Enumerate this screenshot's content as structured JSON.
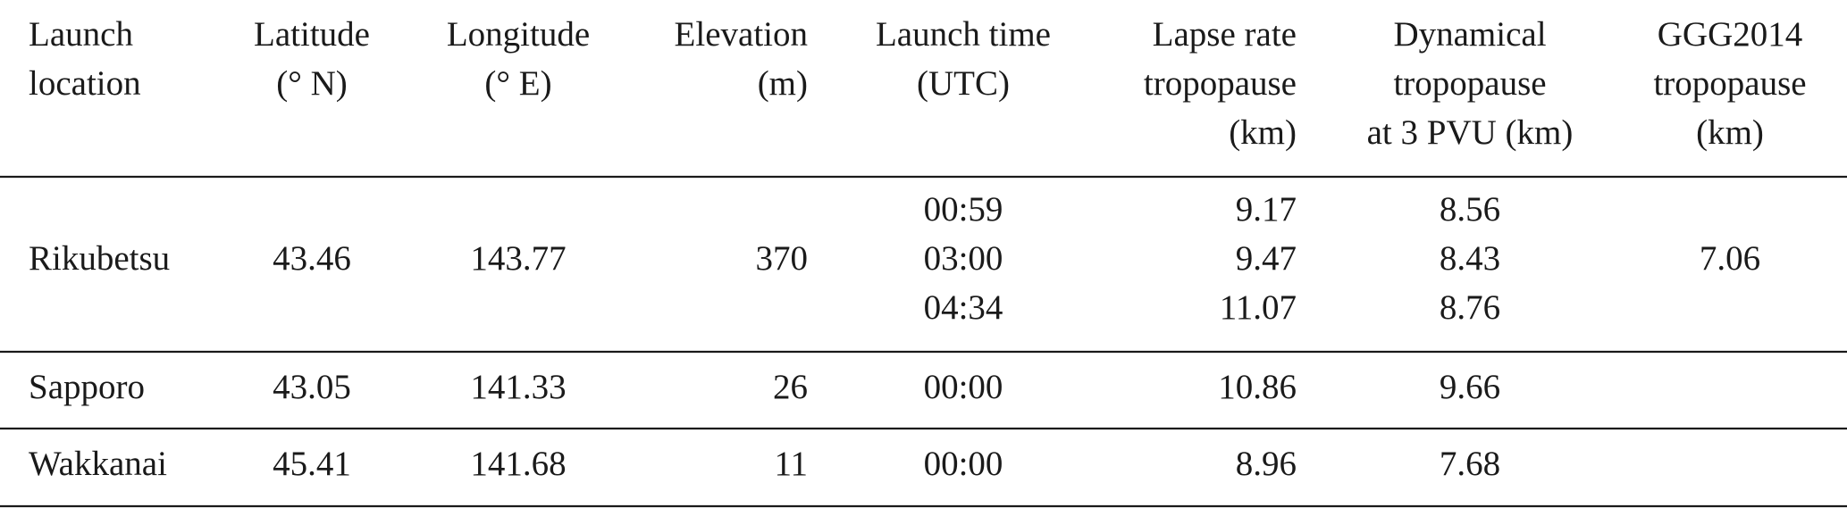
{
  "table": {
    "headers": [
      [
        "Launch",
        "location"
      ],
      [
        "Latitude",
        "(° N)"
      ],
      [
        "Longitude",
        "(° E)"
      ],
      [
        "Elevation",
        "(m)"
      ],
      [
        "Launch time",
        "(UTC)"
      ],
      [
        "Lapse rate",
        "tropopause",
        "(km)"
      ],
      [
        "Dynamical",
        "tropopause",
        "at 3 PVU (km)"
      ],
      [
        "GGG2014",
        "tropopause",
        "(km)"
      ]
    ],
    "rows": [
      {
        "location": "Rikubetsu",
        "latitude": 43.46,
        "longitude": 143.77,
        "elevation": 370,
        "launch_time": [
          "00:59",
          "03:00",
          "04:34"
        ],
        "lapse_rate": [
          9.17,
          9.47,
          11.07
        ],
        "dynamical": [
          8.56,
          8.43,
          8.76
        ],
        "ggg2014": 7.06
      },
      {
        "location": "Sapporo",
        "latitude": 43.05,
        "longitude": 141.33,
        "elevation": 26,
        "launch_time": [
          "00:00"
        ],
        "lapse_rate": [
          10.86
        ],
        "dynamical": [
          9.66
        ]
      },
      {
        "location": "Wakkanai",
        "latitude": 45.41,
        "longitude": 141.68,
        "elevation": 11,
        "launch_time": [
          "00:00"
        ],
        "lapse_rate": [
          8.96
        ],
        "dynamical": [
          7.68
        ]
      }
    ]
  }
}
